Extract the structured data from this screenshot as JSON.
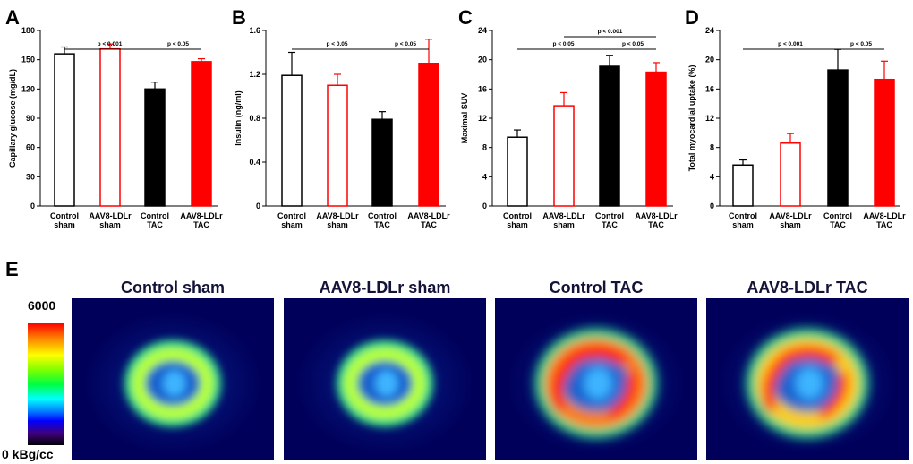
{
  "chart_data": [
    {
      "panel": "A",
      "type": "bar",
      "ylabel": "Capillary glucose (mg/dL)",
      "ylim": [
        0,
        180
      ],
      "yticks": [
        0,
        30,
        60,
        90,
        120,
        150,
        180
      ],
      "categories": [
        [
          "Control",
          "sham"
        ],
        [
          "AAV8-LDLr",
          "sham"
        ],
        [
          "Control",
          "TAC"
        ],
        [
          "AAV8-LDLr",
          "TAC"
        ]
      ],
      "values": [
        156,
        161,
        120,
        148
      ],
      "errors": [
        7,
        5,
        7,
        3
      ],
      "bar_styles": [
        "open-black",
        "open-red",
        "filled-black",
        "filled-red"
      ],
      "brackets": [
        {
          "from": 0,
          "to": 2,
          "label": "p < 0.001",
          "level": 1
        },
        {
          "from": 2,
          "to": 3,
          "label": "p < 0.05",
          "level": 1
        }
      ]
    },
    {
      "panel": "B",
      "type": "bar",
      "ylabel": "Insulin (ng/ml)",
      "ylim": [
        0,
        1.6
      ],
      "yticks": [
        "0",
        "0.4",
        "0.8",
        "1.2",
        "1.6"
      ],
      "categories": [
        [
          "Control",
          "sham"
        ],
        [
          "AAV8-LDLr",
          "sham"
        ],
        [
          "Control",
          "TAC"
        ],
        [
          "AAV8-LDLr",
          "TAC"
        ]
      ],
      "values": [
        1.19,
        1.1,
        0.79,
        1.3
      ],
      "errors": [
        0.21,
        0.1,
        0.07,
        0.22
      ],
      "bar_styles": [
        "open-black",
        "open-red",
        "filled-black",
        "filled-red"
      ],
      "brackets": [
        {
          "from": 0,
          "to": 2,
          "label": "p < 0.05",
          "level": 1
        },
        {
          "from": 2,
          "to": 3,
          "label": "p < 0.05",
          "level": 1
        }
      ]
    },
    {
      "panel": "C",
      "type": "bar",
      "ylabel": "Maximal SUV",
      "ylim": [
        0,
        24
      ],
      "yticks": [
        0,
        4,
        8,
        12,
        16,
        20,
        24
      ],
      "categories": [
        [
          "Control",
          "sham"
        ],
        [
          "AAV8-LDLr",
          "sham"
        ],
        [
          "Control",
          "TAC"
        ],
        [
          "AAV8-LDLr",
          "TAC"
        ]
      ],
      "values": [
        9.4,
        13.7,
        19.1,
        18.3
      ],
      "errors": [
        1.0,
        1.8,
        1.5,
        1.3
      ],
      "bar_styles": [
        "open-black",
        "open-red",
        "filled-black",
        "filled-red"
      ],
      "brackets": [
        {
          "from": 0,
          "to": 2,
          "label": "p < 0.05",
          "level": 1
        },
        {
          "from": 2,
          "to": 3,
          "label": "p < 0.05",
          "level": 1
        },
        {
          "from": 1,
          "to": 3,
          "label": "p < 0.001",
          "level": 2
        }
      ]
    },
    {
      "panel": "D",
      "type": "bar",
      "ylabel": "Total myocardial uptake (%)",
      "ylim": [
        0,
        24
      ],
      "yticks": [
        0,
        4,
        8,
        12,
        16,
        20,
        24
      ],
      "categories": [
        [
          "Control",
          "sham"
        ],
        [
          "AAV8-LDLr",
          "sham"
        ],
        [
          "Control",
          "TAC"
        ],
        [
          "AAV8-LDLr",
          "TAC"
        ]
      ],
      "values": [
        5.6,
        8.6,
        18.6,
        17.3
      ],
      "errors": [
        0.7,
        1.3,
        2.8,
        2.5
      ],
      "bar_styles": [
        "open-black",
        "open-red",
        "filled-black",
        "filled-red"
      ],
      "brackets": [
        {
          "from": 0,
          "to": 2,
          "label": "p < 0.001",
          "level": 1
        },
        {
          "from": 2,
          "to": 3,
          "label": "p < 0.05",
          "level": 1
        }
      ]
    }
  ],
  "panel_e": {
    "letter": "E",
    "colorbar": {
      "max_label": "6000",
      "min_label": "0 kBg/cc"
    },
    "images": [
      {
        "title": "Control sham",
        "uptake": 0.45
      },
      {
        "title": "AAV8-LDLr sham",
        "uptake": 0.42
      },
      {
        "title": "Control TAC",
        "uptake": 1.0
      },
      {
        "title": "AAV8-LDLr TAC",
        "uptake": 0.85
      }
    ]
  },
  "colors": {
    "red": "#ff0000",
    "black": "#000000",
    "pet_background": "#00005a"
  }
}
